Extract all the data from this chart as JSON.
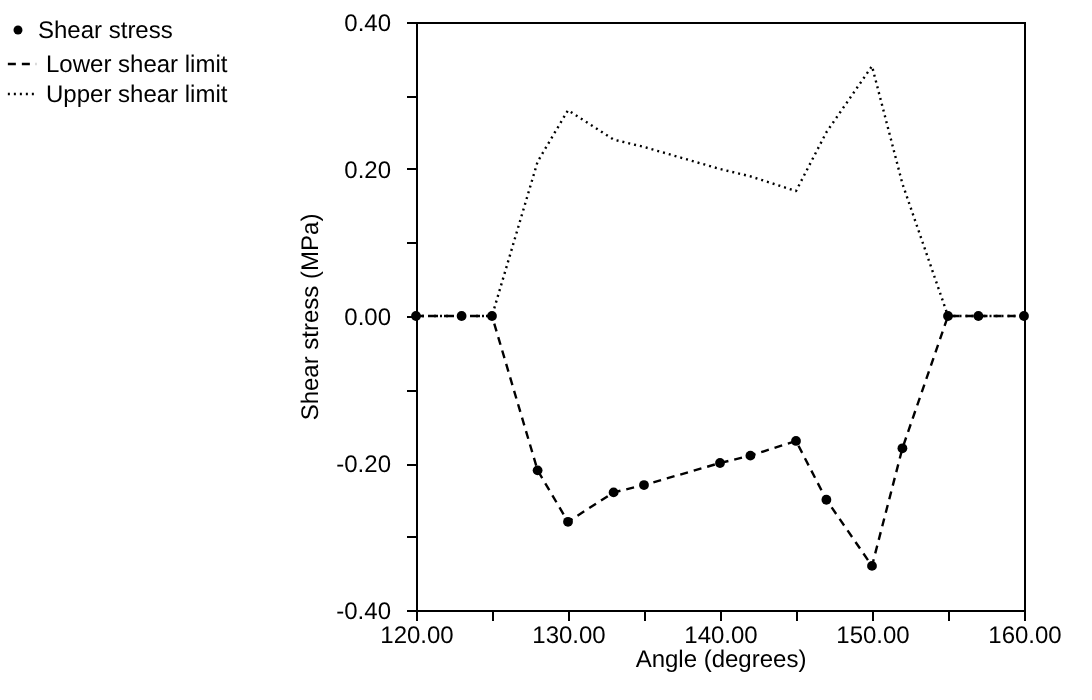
{
  "chart_data": {
    "type": "line",
    "xlabel": "Angle (degrees)",
    "ylabel": "Shear stress (MPa)",
    "x": [
      120,
      123,
      125,
      128,
      130,
      133,
      135,
      140,
      142,
      145,
      147,
      150,
      152,
      155,
      157,
      160
    ],
    "series": [
      {
        "name": "Shear stress",
        "type": "scatter",
        "marker": "circle",
        "color": "#000000",
        "values": [
          0,
          0,
          0,
          -0.21,
          -0.28,
          -0.24,
          -0.23,
          -0.2,
          -0.19,
          -0.17,
          -0.25,
          -0.34,
          -0.18,
          0,
          0,
          0
        ]
      },
      {
        "name": "Lower shear limit",
        "line_style": "dashed",
        "color": "#000000",
        "values": [
          0,
          0,
          0,
          -0.21,
          -0.28,
          -0.24,
          -0.23,
          -0.2,
          -0.19,
          -0.17,
          -0.25,
          -0.34,
          -0.18,
          0,
          0,
          0
        ]
      },
      {
        "name": "Upper shear limit",
        "line_style": "dotted",
        "color": "#000000",
        "values": [
          0,
          0,
          0,
          0.21,
          0.28,
          0.24,
          0.23,
          0.2,
          0.19,
          0.17,
          0.25,
          0.34,
          0.18,
          0,
          0,
          0
        ]
      }
    ],
    "xlim": [
      120,
      160
    ],
    "xticks": [
      {
        "value": 120,
        "label": "120.00"
      },
      {
        "value": 125,
        "label": null
      },
      {
        "value": 130,
        "label": "130.00"
      },
      {
        "value": 135,
        "label": null
      },
      {
        "value": 140,
        "label": "140.00"
      },
      {
        "value": 145,
        "label": null
      },
      {
        "value": 150,
        "label": "150.00"
      },
      {
        "value": 155,
        "label": null
      },
      {
        "value": 160,
        "label": "160.00"
      }
    ],
    "ylim": [
      -0.4,
      0.4
    ],
    "yticks": [
      {
        "value": -0.4,
        "label": "-0.40"
      },
      {
        "value": -0.3,
        "label": null
      },
      {
        "value": -0.2,
        "label": "-0.20"
      },
      {
        "value": -0.1,
        "label": null
      },
      {
        "value": 0,
        "label": "0.00"
      },
      {
        "value": 0.1,
        "label": null
      },
      {
        "value": 0.2,
        "label": "0.20"
      },
      {
        "value": 0.3,
        "label": null
      },
      {
        "value": 0.4,
        "label": "0.40"
      }
    ],
    "grid": false,
    "legend": "top left"
  }
}
